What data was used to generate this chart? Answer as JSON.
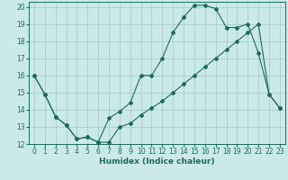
{
  "xlabel": "Humidex (Indice chaleur)",
  "xlim": [
    -0.5,
    23.5
  ],
  "ylim": [
    12,
    20.3
  ],
  "yticks": [
    12,
    13,
    14,
    15,
    16,
    17,
    18,
    19,
    20
  ],
  "xticks": [
    0,
    1,
    2,
    3,
    4,
    5,
    6,
    7,
    8,
    9,
    10,
    11,
    12,
    13,
    14,
    15,
    16,
    17,
    18,
    19,
    20,
    21,
    22,
    23
  ],
  "background_color": "#cce9e9",
  "grid_color": "#aacccc",
  "line_color": "#1a6b5a",
  "series1_x": [
    0,
    1,
    2,
    3,
    4,
    5,
    6,
    7,
    8,
    9,
    10,
    11,
    12,
    13,
    14,
    15,
    16,
    17,
    18,
    19,
    20,
    21,
    22,
    23
  ],
  "series1_y": [
    16.0,
    14.9,
    13.6,
    13.1,
    12.3,
    12.4,
    12.1,
    13.5,
    13.9,
    14.4,
    16.0,
    16.0,
    17.0,
    18.5,
    19.4,
    20.1,
    20.1,
    19.9,
    18.8,
    18.8,
    19.0,
    17.3,
    14.9,
    14.1
  ],
  "series2_x": [
    0,
    1,
    2,
    3,
    4,
    5,
    6,
    7,
    8,
    9,
    10,
    11,
    12,
    13,
    14,
    15,
    16,
    17,
    18,
    19,
    20,
    21,
    22,
    23
  ],
  "series2_y": [
    16.0,
    14.9,
    13.6,
    13.1,
    12.3,
    12.4,
    12.1,
    12.1,
    13.0,
    13.2,
    13.7,
    14.1,
    14.5,
    15.0,
    15.5,
    16.0,
    16.5,
    17.0,
    17.5,
    18.0,
    18.5,
    19.0,
    14.9,
    14.1
  ]
}
